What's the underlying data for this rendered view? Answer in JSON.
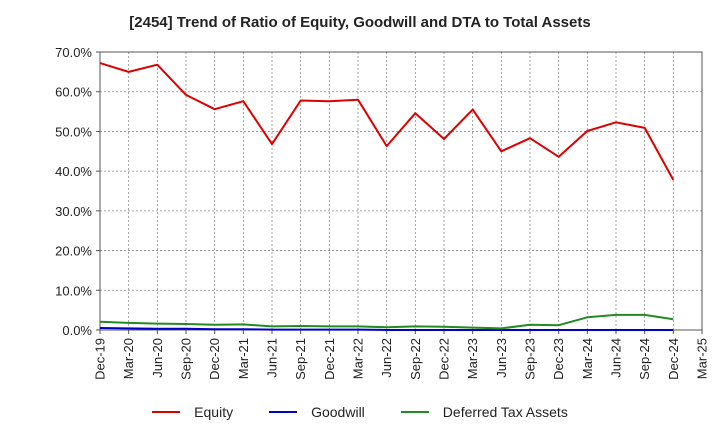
{
  "chart_data": {
    "type": "line",
    "title": "[2454]  Trend of Ratio of Equity, Goodwill and DTA to Total Assets",
    "xlabel": "",
    "ylabel": "",
    "ylim": [
      0,
      70
    ],
    "y_ticks": [
      "0.0%",
      "10.0%",
      "20.0%",
      "30.0%",
      "40.0%",
      "50.0%",
      "60.0%",
      "70.0%"
    ],
    "x_ticks": [
      "Dec-19",
      "Mar-20",
      "Jun-20",
      "Sep-20",
      "Dec-20",
      "Mar-21",
      "Jun-21",
      "Sep-21",
      "Dec-21",
      "Mar-22",
      "Jun-22",
      "Sep-22",
      "Dec-22",
      "Mar-23",
      "Jun-23",
      "Sep-23",
      "Dec-23",
      "Mar-24",
      "Jun-24",
      "Sep-24",
      "Dec-24",
      "Mar-25"
    ],
    "categories": [
      "Dec-19",
      "Mar-20",
      "Jun-20",
      "Sep-20",
      "Dec-20",
      "Mar-21",
      "Jun-21",
      "Sep-21",
      "Dec-21",
      "Mar-22",
      "Jun-22",
      "Sep-22",
      "Dec-22",
      "Mar-23",
      "Jun-23",
      "Sep-23",
      "Dec-23",
      "Mar-24",
      "Jun-24",
      "Sep-24",
      "Dec-24"
    ],
    "grid": true,
    "legend_position": "bottom",
    "series": [
      {
        "name": "Equity",
        "color": "#dd0000",
        "values": [
          67.2,
          65.0,
          66.8,
          59.2,
          55.6,
          57.6,
          46.8,
          57.8,
          57.6,
          58.0,
          46.3,
          54.6,
          48.1,
          55.5,
          45.0,
          48.3,
          43.6,
          50.1,
          52.3,
          50.9,
          37.8
        ]
      },
      {
        "name": "Goodwill",
        "color": "#0000cc",
        "values": [
          0.5,
          0.4,
          0.3,
          0.3,
          0.2,
          0.2,
          0.1,
          0.1,
          0.1,
          0.1,
          0.0,
          0.0,
          0.0,
          0.0,
          0.0,
          0.0,
          0.0,
          0.0,
          0.0,
          0.0,
          0.0
        ]
      },
      {
        "name": "Deferred Tax Assets",
        "color": "#228b22",
        "values": [
          2.1,
          1.8,
          1.6,
          1.5,
          1.3,
          1.4,
          0.9,
          1.0,
          0.9,
          0.9,
          0.7,
          0.9,
          0.8,
          0.6,
          0.4,
          1.3,
          1.2,
          3.2,
          3.8,
          3.8,
          2.7
        ]
      }
    ]
  }
}
